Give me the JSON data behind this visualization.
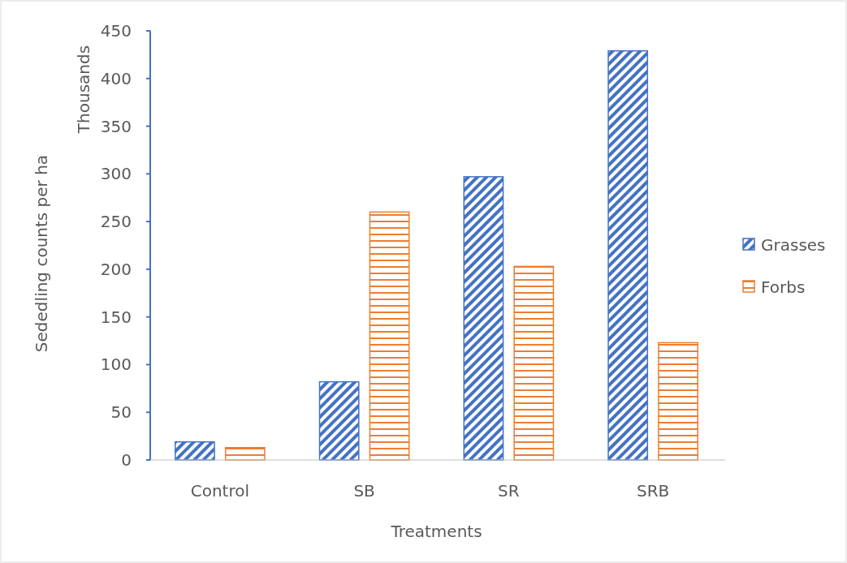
{
  "chart_data": {
    "type": "bar",
    "xlabel": "Treatments",
    "ylabel": "Sededling counts per ha",
    "annotations": [
      "Thousands"
    ],
    "categories": [
      "Control",
      "SB",
      "SR",
      "SRB"
    ],
    "series": [
      {
        "name": "Grasses",
        "color": "#4472c4",
        "values": [
          19,
          82,
          297,
          429
        ]
      },
      {
        "name": "Forbs",
        "color": "#ed7d31",
        "values": [
          13,
          260,
          203,
          123
        ]
      }
    ],
    "ylim": [
      0,
      450
    ],
    "yticks": [
      0,
      50,
      100,
      150,
      200,
      250,
      300,
      350,
      400,
      450
    ],
    "legend": "right"
  }
}
